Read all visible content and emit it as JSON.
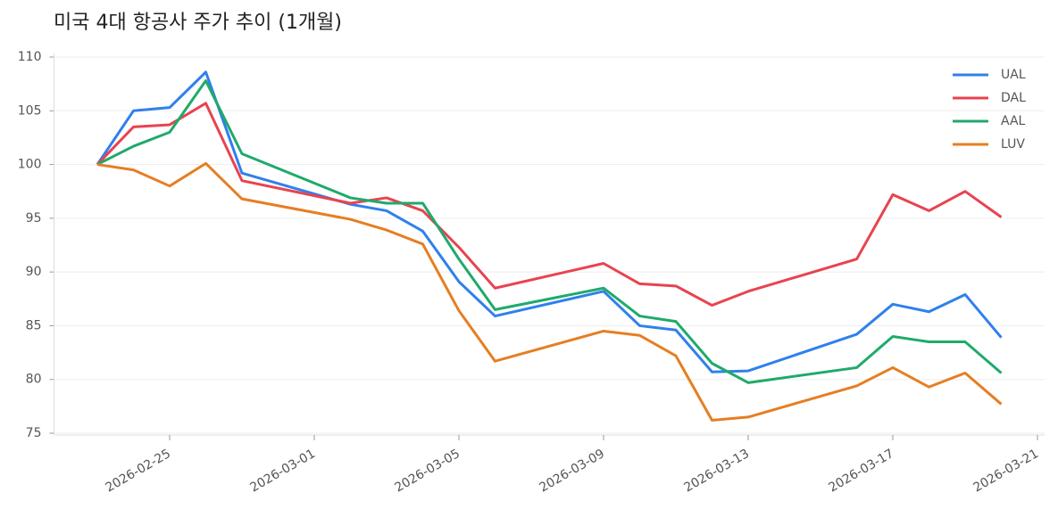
{
  "chart_data": {
    "type": "line",
    "title": "미국 4대 항공사 주가 추이 (1개월)",
    "x": [
      "2026-02-23",
      "2026-02-24",
      "2026-02-25",
      "2026-02-26",
      "2026-02-27",
      "2026-03-02",
      "2026-03-03",
      "2026-03-04",
      "2026-03-05",
      "2026-03-06",
      "2026-03-09",
      "2026-03-10",
      "2026-03-11",
      "2026-03-12",
      "2026-03-13",
      "2026-03-16",
      "2026-03-17",
      "2026-03-18",
      "2026-03-19",
      "2026-03-20"
    ],
    "series": [
      {
        "name": "UAL",
        "color": "#2f80ed",
        "values": [
          100,
          105.0,
          105.3,
          108.6,
          99.2,
          96.3,
          95.7,
          93.8,
          89.1,
          85.9,
          88.2,
          85.0,
          84.6,
          80.7,
          80.8,
          84.2,
          87.0,
          86.3,
          87.9,
          83.9
        ]
      },
      {
        "name": "DAL",
        "color": "#e8434f",
        "values": [
          100,
          103.5,
          103.7,
          105.7,
          98.5,
          96.4,
          96.9,
          95.7,
          92.3,
          88.5,
          90.8,
          88.9,
          88.7,
          86.9,
          88.2,
          91.2,
          97.2,
          95.7,
          97.5,
          95.1
        ]
      },
      {
        "name": "AAL",
        "color": "#1faa6b",
        "values": [
          100,
          101.7,
          103.0,
          107.8,
          101.0,
          96.9,
          96.4,
          96.4,
          91.2,
          86.5,
          88.5,
          85.9,
          85.4,
          81.5,
          79.7,
          81.1,
          84.0,
          83.5,
          83.5,
          80.6
        ]
      },
      {
        "name": "LUV",
        "color": "#e67e22",
        "values": [
          100,
          99.5,
          98.0,
          100.1,
          96.8,
          94.9,
          93.9,
          92.6,
          86.4,
          81.7,
          84.5,
          84.1,
          82.2,
          76.2,
          76.5,
          79.4,
          81.1,
          79.3,
          80.6,
          77.7
        ]
      }
    ],
    "xlim": [
      "2026-02-22",
      "2026-03-21"
    ],
    "xticks": [
      "2026-02-25",
      "2026-03-01",
      "2026-03-05",
      "2026-03-09",
      "2026-03-13",
      "2026-03-17",
      "2026-03-21"
    ],
    "ylim": [
      75,
      110
    ],
    "yticks": [
      75,
      80,
      85,
      90,
      95,
      100,
      105,
      110
    ],
    "grid": true,
    "legend": "upper right"
  }
}
